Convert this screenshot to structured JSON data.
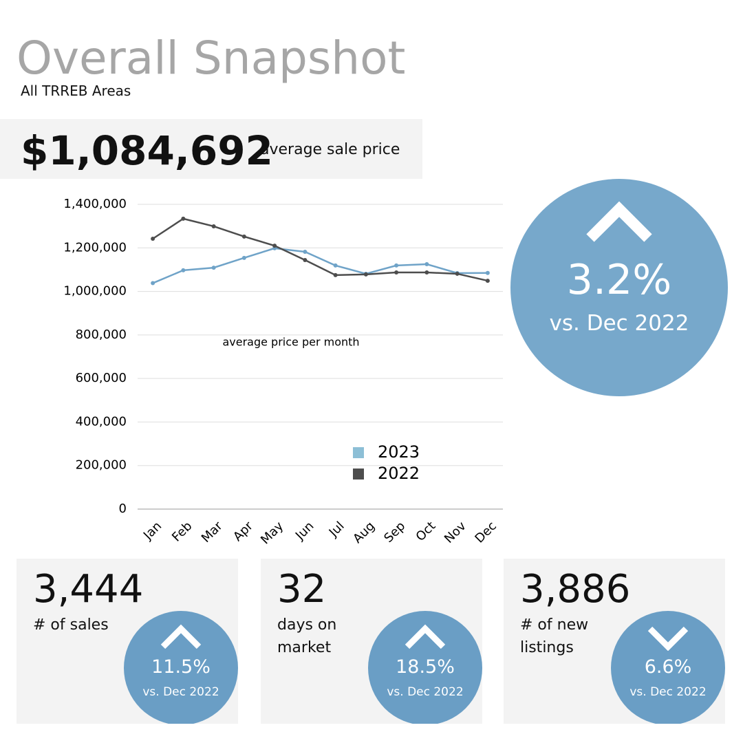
{
  "header": {
    "title": "Overall Snapshot",
    "subtitle": "All TRREB Areas"
  },
  "price": {
    "value": "$1,084,692",
    "label": "average sale price"
  },
  "badge": {
    "change": "3.2%",
    "comparison": "vs. Dec 2022"
  },
  "cards": [
    {
      "value": "3,444",
      "label": "# of sales",
      "change": "11.5%",
      "comparison": "vs. Dec 2022"
    },
    {
      "value": "32",
      "label": "days on market",
      "change": "18.5%",
      "comparison": "vs. Dec 2022"
    },
    {
      "value": "3,886",
      "label": "# of new listings",
      "change": "6.6%",
      "comparison": "vs. Dec 2022"
    }
  ],
  "chart_data": {
    "type": "line",
    "annotation": "average price per month",
    "categories": [
      "Jan",
      "Feb",
      "Mar",
      "Apr",
      "May",
      "Jun",
      "Jul",
      "Aug",
      "Sep",
      "Oct",
      "Nov",
      "Dec"
    ],
    "series": [
      {
        "name": "2023",
        "color": "#6fa3c8",
        "legend_color": "#8dbfd6",
        "values": [
          1038000,
          1097000,
          1109000,
          1154000,
          1198000,
          1182000,
          1119000,
          1081000,
          1119000,
          1125000,
          1084000,
          1084692
        ]
      },
      {
        "name": "2022",
        "color": "#4d4d4d",
        "legend_color": "#4d4d4d",
        "values": [
          1242000,
          1334000,
          1299000,
          1252000,
          1210000,
          1144000,
          1075000,
          1078000,
          1087000,
          1087000,
          1081000,
          1049000
        ]
      }
    ],
    "ylim": [
      0,
      1400000
    ],
    "yticks": [
      0,
      {
        "value": 200000,
        "label": "200,000"
      },
      {
        "value": 400000,
        "label": "400,000"
      },
      {
        "value": 600000,
        "label": "600,000"
      },
      {
        "value": 800000,
        "label": "800,000"
      },
      {
        "value": 1000000,
        "label": "1,000,000"
      },
      {
        "value": 1200000,
        "label": "1,200,000"
      },
      {
        "value": 1400000,
        "label": "1,400,000"
      }
    ],
    "grid": true
  }
}
